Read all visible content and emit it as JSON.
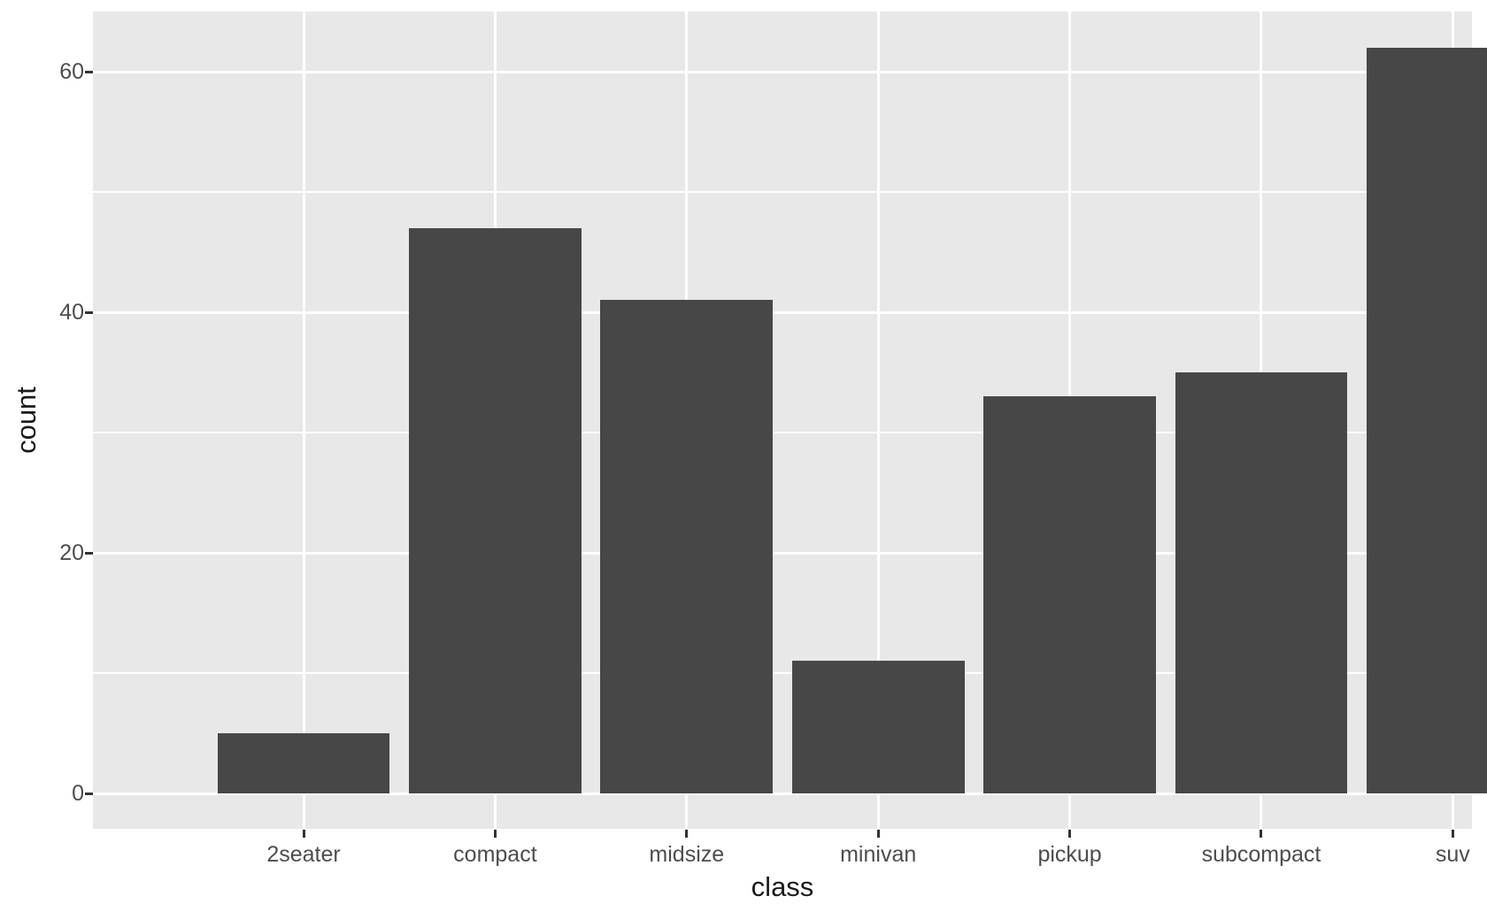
{
  "chart_data": {
    "type": "bar",
    "title": "",
    "xlabel": "class",
    "ylabel": "count",
    "categories": [
      "2seater",
      "compact",
      "midsize",
      "minivan",
      "pickup",
      "subcompact",
      "suv"
    ],
    "values": [
      5,
      47,
      41,
      11,
      33,
      35,
      62
    ],
    "ytick_values": [
      0,
      20,
      40,
      60
    ],
    "ytick_labels": [
      "0",
      "20",
      "40",
      "60"
    ],
    "yminor_values": [
      10,
      30,
      50
    ],
    "ylim": [
      -3.1,
      65.1
    ],
    "grid": "white major and minor horizontal gridlines; white vertical gridlines at category centers",
    "legend": "none",
    "colors": {
      "bar_fill": "#474747",
      "panel_background": "#E8E8E8",
      "gridline": "#FFFFFF",
      "tick_label": "#4D4D4D",
      "axis_title": "#1A1A1A",
      "tick_mark": "#333333",
      "figure_background": "#FFFFFF"
    }
  }
}
